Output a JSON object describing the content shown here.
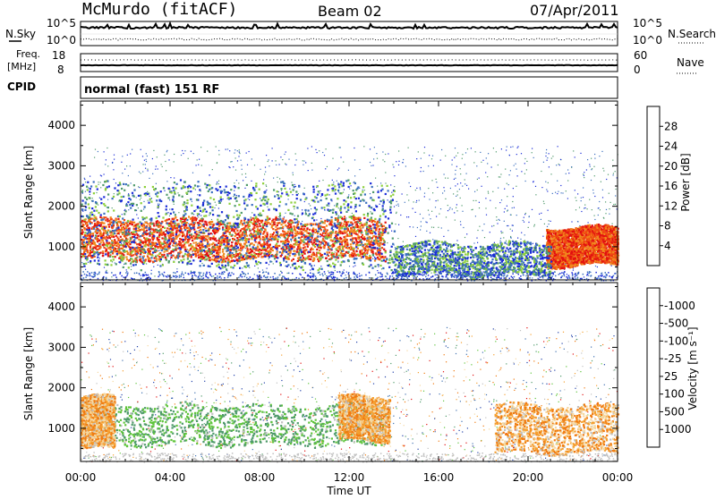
{
  "header": {
    "station": "McMurdo (fitACF)",
    "beam": "Beam 02",
    "date": "07/Apr/2011"
  },
  "status_panel": {
    "nsky_label": "N.Sky",
    "nsearch_label": "N.Search",
    "noise_ticks_left": [
      "10^5",
      "10^0"
    ],
    "noise_ticks_right": [
      "10^5",
      "10^0"
    ],
    "freq_label": "Freq.",
    "freq_unit": "[MHz]",
    "freq_ticks": [
      "18",
      "8"
    ],
    "nave_label": "Nave",
    "nave_ticks": [
      "60",
      "0"
    ],
    "cpid_label": "CPID",
    "cpid_value": "normal (fast) 151 RF"
  },
  "chart_data": [
    {
      "type": "heatmap",
      "title": "",
      "xlabel": "Time UT",
      "ylabel": "Slant Range [km]",
      "x_ticks": [
        "00:00",
        "04:00",
        "08:00",
        "12:00",
        "16:00",
        "20:00",
        "00:00"
      ],
      "y_ticks": [
        1000,
        2000,
        3000,
        4000
      ],
      "ylim": [
        180,
        4600
      ],
      "colorbar": {
        "label": "Power [dB]",
        "ticks": [
          "4",
          "8",
          "12",
          "16",
          "20",
          "24",
          "28"
        ],
        "colors": [
          "#1a2bd8",
          "#3a6fbf",
          "#4f9a6b",
          "#8ccf3a",
          "#f2c200",
          "#f08a1c",
          "#f04a12",
          "#e21010"
        ]
      },
      "regions": [
        {
          "t0": 0.0,
          "t1": 13.6,
          "r0": 700,
          "r1": 1700,
          "level": "high"
        },
        {
          "t0": 0.0,
          "t1": 14.0,
          "r0": 500,
          "r1": 2600,
          "level": "low"
        },
        {
          "t0": 20.8,
          "t1": 24.0,
          "r0": 550,
          "r1": 1500,
          "level": "high"
        },
        {
          "t0": 14.0,
          "t1": 21.0,
          "r0": 300,
          "r1": 1100,
          "level": "low"
        }
      ]
    },
    {
      "type": "heatmap",
      "title": "",
      "xlabel": "Time UT",
      "ylabel": "Slant Range [km]",
      "x_ticks": [
        "00:00",
        "04:00",
        "08:00",
        "12:00",
        "16:00",
        "20:00",
        "00:00"
      ],
      "y_ticks": [
        1000,
        2000,
        3000,
        4000
      ],
      "ylim": [
        180,
        4600
      ],
      "colorbar": {
        "label": "Velocity [m s⁻¹]",
        "ticks": [
          "1000",
          "500",
          "100",
          "25",
          "-25",
          "-100",
          "-500",
          "-1000"
        ],
        "colors": [
          "#1f3fa8",
          "#3c6fb0",
          "#4e9a6a",
          "#5ec43a",
          "#c0c0c0",
          "#f5d7a0",
          "#f5a030",
          "#f07a10",
          "#e21010"
        ]
      },
      "regions": [
        {
          "t0": 0.5,
          "t1": 13.6,
          "r0": 600,
          "r1": 1600,
          "level": "positive"
        },
        {
          "t0": 0.0,
          "t1": 1.5,
          "r0": 500,
          "r1": 1800,
          "level": "negative"
        },
        {
          "t0": 11.5,
          "t1": 13.8,
          "r0": 700,
          "r1": 1800,
          "level": "negative"
        },
        {
          "t0": 18.5,
          "t1": 24.0,
          "r0": 400,
          "r1": 1600,
          "level": "negative"
        }
      ]
    }
  ]
}
